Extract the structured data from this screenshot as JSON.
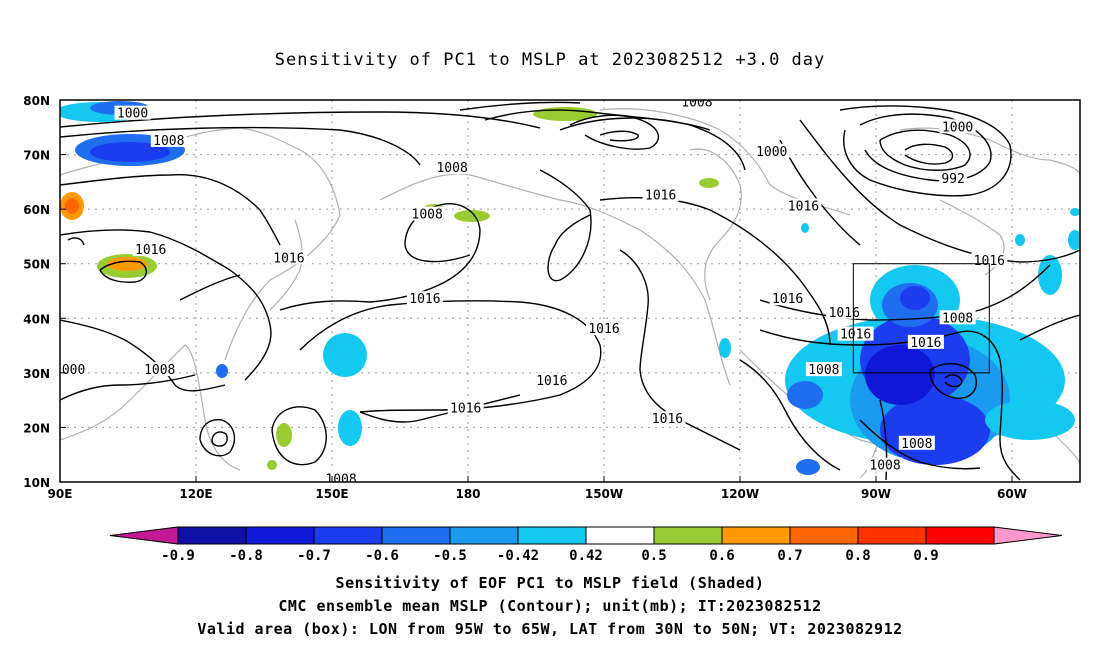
{
  "title": "Sensitivity of PC1 to MSLP at 2023082512 +3.0 day",
  "axes": {
    "x_ticks": [
      "90E",
      "120E",
      "150E",
      "180",
      "150W",
      "120W",
      "90W",
      "60W"
    ],
    "y_ticks": [
      "80N",
      "70N",
      "60N",
      "50N",
      "40N",
      "30N",
      "20N",
      "10N"
    ]
  },
  "contour_labels": [
    {
      "text": "1000",
      "lon": 106,
      "lat": 77.5
    },
    {
      "text": "1008",
      "lon": 114,
      "lat": 72.5
    },
    {
      "text": "1008",
      "lon": 176.5,
      "lat": 67.5
    },
    {
      "text": "1008",
      "lon": 230.5,
      "lat": 79.5
    },
    {
      "text": "1000",
      "lon": 247,
      "lat": 70.5
    },
    {
      "text": "1000",
      "lon": 288,
      "lat": 75
    },
    {
      "text": "992",
      "lon": 287,
      "lat": 65.5
    },
    {
      "text": "1016",
      "lon": 110,
      "lat": 52.5
    },
    {
      "text": "1008",
      "lon": 171,
      "lat": 59
    },
    {
      "text": "1016",
      "lon": 140.5,
      "lat": 51
    },
    {
      "text": "1016",
      "lon": 222.5,
      "lat": 62.5
    },
    {
      "text": "1016",
      "lon": 254,
      "lat": 60.5
    },
    {
      "text": "1016",
      "lon": 170.5,
      "lat": 43.5
    },
    {
      "text": "1016",
      "lon": 210,
      "lat": 38
    },
    {
      "text": "1016",
      "lon": 250.5,
      "lat": 43.5
    },
    {
      "text": "1016",
      "lon": 265.5,
      "lat": 37
    },
    {
      "text": "1016",
      "lon": 263,
      "lat": 41
    },
    {
      "text": "1016",
      "lon": 295,
      "lat": 50.5
    },
    {
      "text": "1008",
      "lon": 288,
      "lat": 40
    },
    {
      "text": "1016",
      "lon": 281,
      "lat": 35.5
    },
    {
      "text": "1016",
      "lon": 198.5,
      "lat": 28.5
    },
    {
      "text": "1016",
      "lon": 179.5,
      "lat": 23.5
    },
    {
      "text": "1016",
      "lon": 224,
      "lat": 21.5
    },
    {
      "text": "1008",
      "lon": 112,
      "lat": 30.5
    },
    {
      "text": "000",
      "lon": 93,
      "lat": 30.5
    },
    {
      "text": "1008",
      "lon": 258.5,
      "lat": 30.5
    },
    {
      "text": "1008",
      "lon": 272,
      "lat": 13
    },
    {
      "text": "1008",
      "lon": 279,
      "lat": 17
    },
    {
      "text": "1008",
      "lon": 152,
      "lat": 10.5
    }
  ],
  "colorbar": {
    "ticks": [
      "-0.9",
      "-0.8",
      "-0.7",
      "-0.6",
      "-0.5",
      "-0.42",
      "0.42",
      "0.5",
      "0.6",
      "0.7",
      "0.8",
      "0.9"
    ],
    "colors": [
      "#c21a96",
      "#0f10a8",
      "#1018d8",
      "#1c3cf0",
      "#1f6ef0",
      "#1a9bf0",
      "#14c8f2",
      "#ffffff",
      "#99cc33",
      "#ff9900",
      "#ff6600",
      "#ff3300",
      "#ff0000",
      "#ff99cc"
    ]
  },
  "caption": {
    "line1": "Sensitivity of EOF PC1 to MSLP field (Shaded)",
    "line2": "CMC ensemble mean MSLP (Contour); unit(mb); IT:2023082512",
    "line3": "Valid area (box): LON from 95W to 65W, LAT from 30N to 50N; VT: 2023082912"
  },
  "valid_box": {
    "lon_min": 265,
    "lon_max": 295,
    "lat_min": 30,
    "lat_max": 50
  }
}
